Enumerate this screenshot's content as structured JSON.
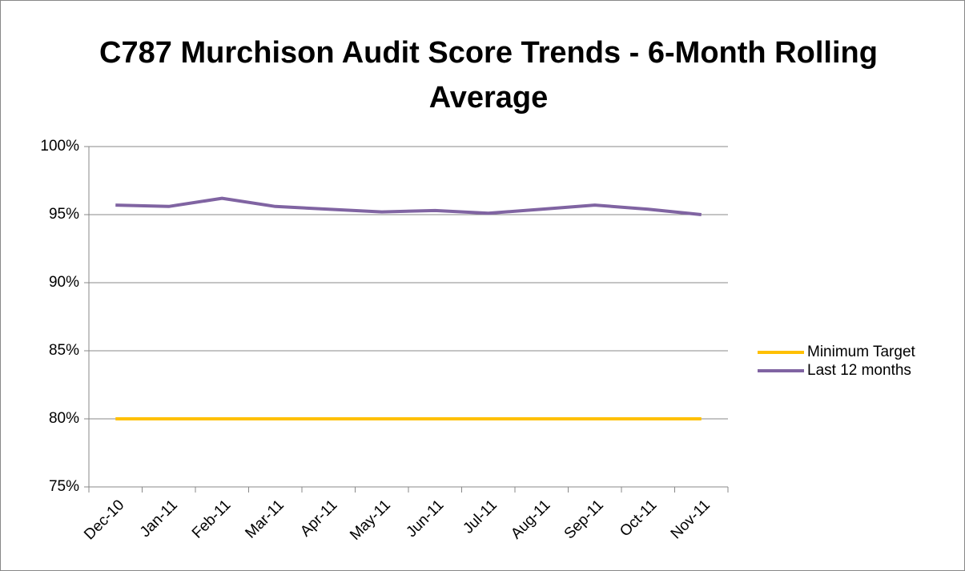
{
  "chart_data": {
    "type": "line",
    "title": "C787 Murchison Audit Score Trends - 6-Month Rolling Average",
    "categories": [
      "Dec-10",
      "Jan-11",
      "Feb-11",
      "Mar-11",
      "Apr-11",
      "May-11",
      "Jun-11",
      "Jul-11",
      "Aug-11",
      "Sep-11",
      "Oct-11",
      "Nov-11"
    ],
    "series": [
      {
        "name": "Minimum Target",
        "color": "#ffc000",
        "values": [
          80,
          80,
          80,
          80,
          80,
          80,
          80,
          80,
          80,
          80,
          80,
          80
        ]
      },
      {
        "name": "Last 12 months",
        "color": "#8064a2",
        "values": [
          95.7,
          95.6,
          96.2,
          95.6,
          95.4,
          95.2,
          95.3,
          95.1,
          95.4,
          95.7,
          95.4,
          95.0
        ]
      }
    ],
    "ylim": [
      75,
      100
    ],
    "yticks": [
      {
        "value": 75,
        "label": "75%"
      },
      {
        "value": 80,
        "label": "80%"
      },
      {
        "value": 85,
        "label": "85%"
      },
      {
        "value": 90,
        "label": "90%"
      },
      {
        "value": 95,
        "label": "95%"
      },
      {
        "value": 100,
        "label": "100%"
      }
    ],
    "grid": true,
    "legend": "right"
  }
}
